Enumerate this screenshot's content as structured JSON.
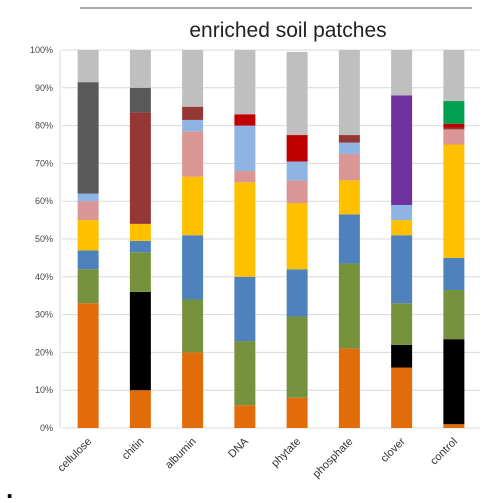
{
  "chart_data": {
    "type": "bar",
    "stacked": true,
    "title": "enriched soil patches",
    "xlabel": "",
    "ylabel": "",
    "ylim": [
      0,
      100
    ],
    "y_ticks": [
      "0%",
      "10%",
      "20%",
      "30%",
      "40%",
      "50%",
      "60%",
      "70%",
      "80%",
      "90%",
      "100%"
    ],
    "grid": true,
    "categories": [
      "cellulose",
      "chitin",
      "albumin",
      "DNA",
      "phytate",
      "phosphate",
      "clover",
      "control"
    ],
    "segment_colors": [
      "#e36c0a",
      "#000000",
      "#76923c",
      "#4f81bd",
      "#ffc000",
      "#da9694",
      "#8eb4e3",
      "#953735",
      "#595959",
      "#7030a0",
      "#c00000",
      "#00a050",
      "#bfbfbf"
    ],
    "series": [
      {
        "color": "#e36c0a",
        "values": [
          33,
          10,
          20,
          6,
          8,
          21,
          16,
          1
        ]
      },
      {
        "color": "#000000",
        "values": [
          0,
          26,
          0,
          0,
          0,
          0,
          6,
          22.5
        ]
      },
      {
        "color": "#76923c",
        "values": [
          9,
          10.5,
          14,
          17,
          21.5,
          22.5,
          11,
          13
        ]
      },
      {
        "color": "#4f81bd",
        "values": [
          5,
          3,
          17,
          17,
          12.5,
          13,
          18,
          8.5
        ]
      },
      {
        "color": "#ffc000",
        "values": [
          8,
          4.5,
          15.5,
          25,
          17.5,
          9,
          4,
          30
        ]
      },
      {
        "color": "#da9694",
        "values": [
          5,
          0,
          12,
          3,
          6,
          7,
          0,
          4
        ]
      },
      {
        "color": "#8eb4e3",
        "values": [
          2,
          0,
          3,
          12,
          5,
          3,
          4,
          0
        ]
      },
      {
        "color": "#953735",
        "values": [
          0,
          29.5,
          3.5,
          0,
          0,
          2,
          0,
          0.5
        ]
      },
      {
        "color": "#595959",
        "values": [
          29.5,
          6.5,
          0,
          0,
          0,
          0,
          0,
          0
        ]
      },
      {
        "color": "#7030a0",
        "values": [
          0,
          0,
          0,
          0,
          0,
          0,
          29,
          0
        ]
      },
      {
        "color": "#c00000",
        "values": [
          0,
          0,
          0,
          3,
          7,
          0,
          0,
          1
        ]
      },
      {
        "color": "#00a050",
        "values": [
          0,
          0,
          0,
          0,
          0,
          0,
          0,
          6
        ]
      },
      {
        "color": "#bfbfbf",
        "values": [
          8.5,
          10,
          15,
          17,
          22,
          22.5,
          12,
          13.5
        ]
      }
    ]
  },
  "page": {
    "bullet": "."
  }
}
